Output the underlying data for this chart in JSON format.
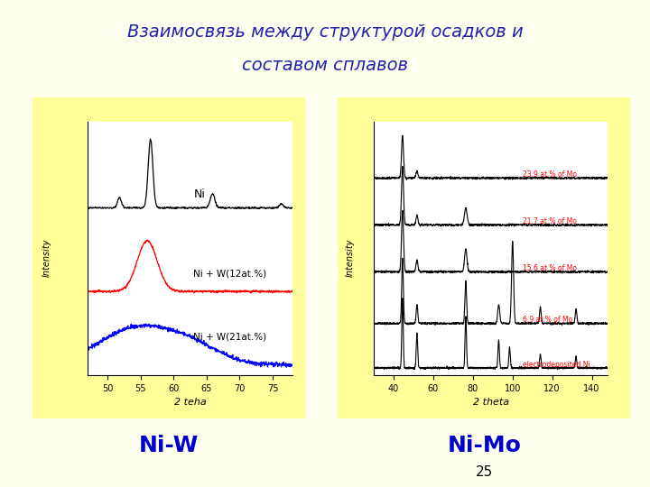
{
  "title_line1": "Взаимосвязь между структурой осадков и",
  "title_line2": "составом сплавов",
  "title_color": "#2222aa",
  "title_style": "italic",
  "slide_bg": "#fffff0",
  "panel_bg": "#ffff99",
  "label_niw": "Ni-W",
  "label_nimo": "Ni-Mo",
  "label_color": "#0000cc",
  "label_fontsize": 18,
  "page_number": "25"
}
